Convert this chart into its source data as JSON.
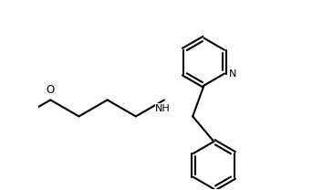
{
  "bg_color": "#ffffff",
  "line_color": "#000000",
  "line_width": 1.5,
  "fig_width": 3.54,
  "fig_height": 2.08,
  "dpi": 100,
  "NH_label": "NH",
  "N_label": "N",
  "O_label": "O"
}
